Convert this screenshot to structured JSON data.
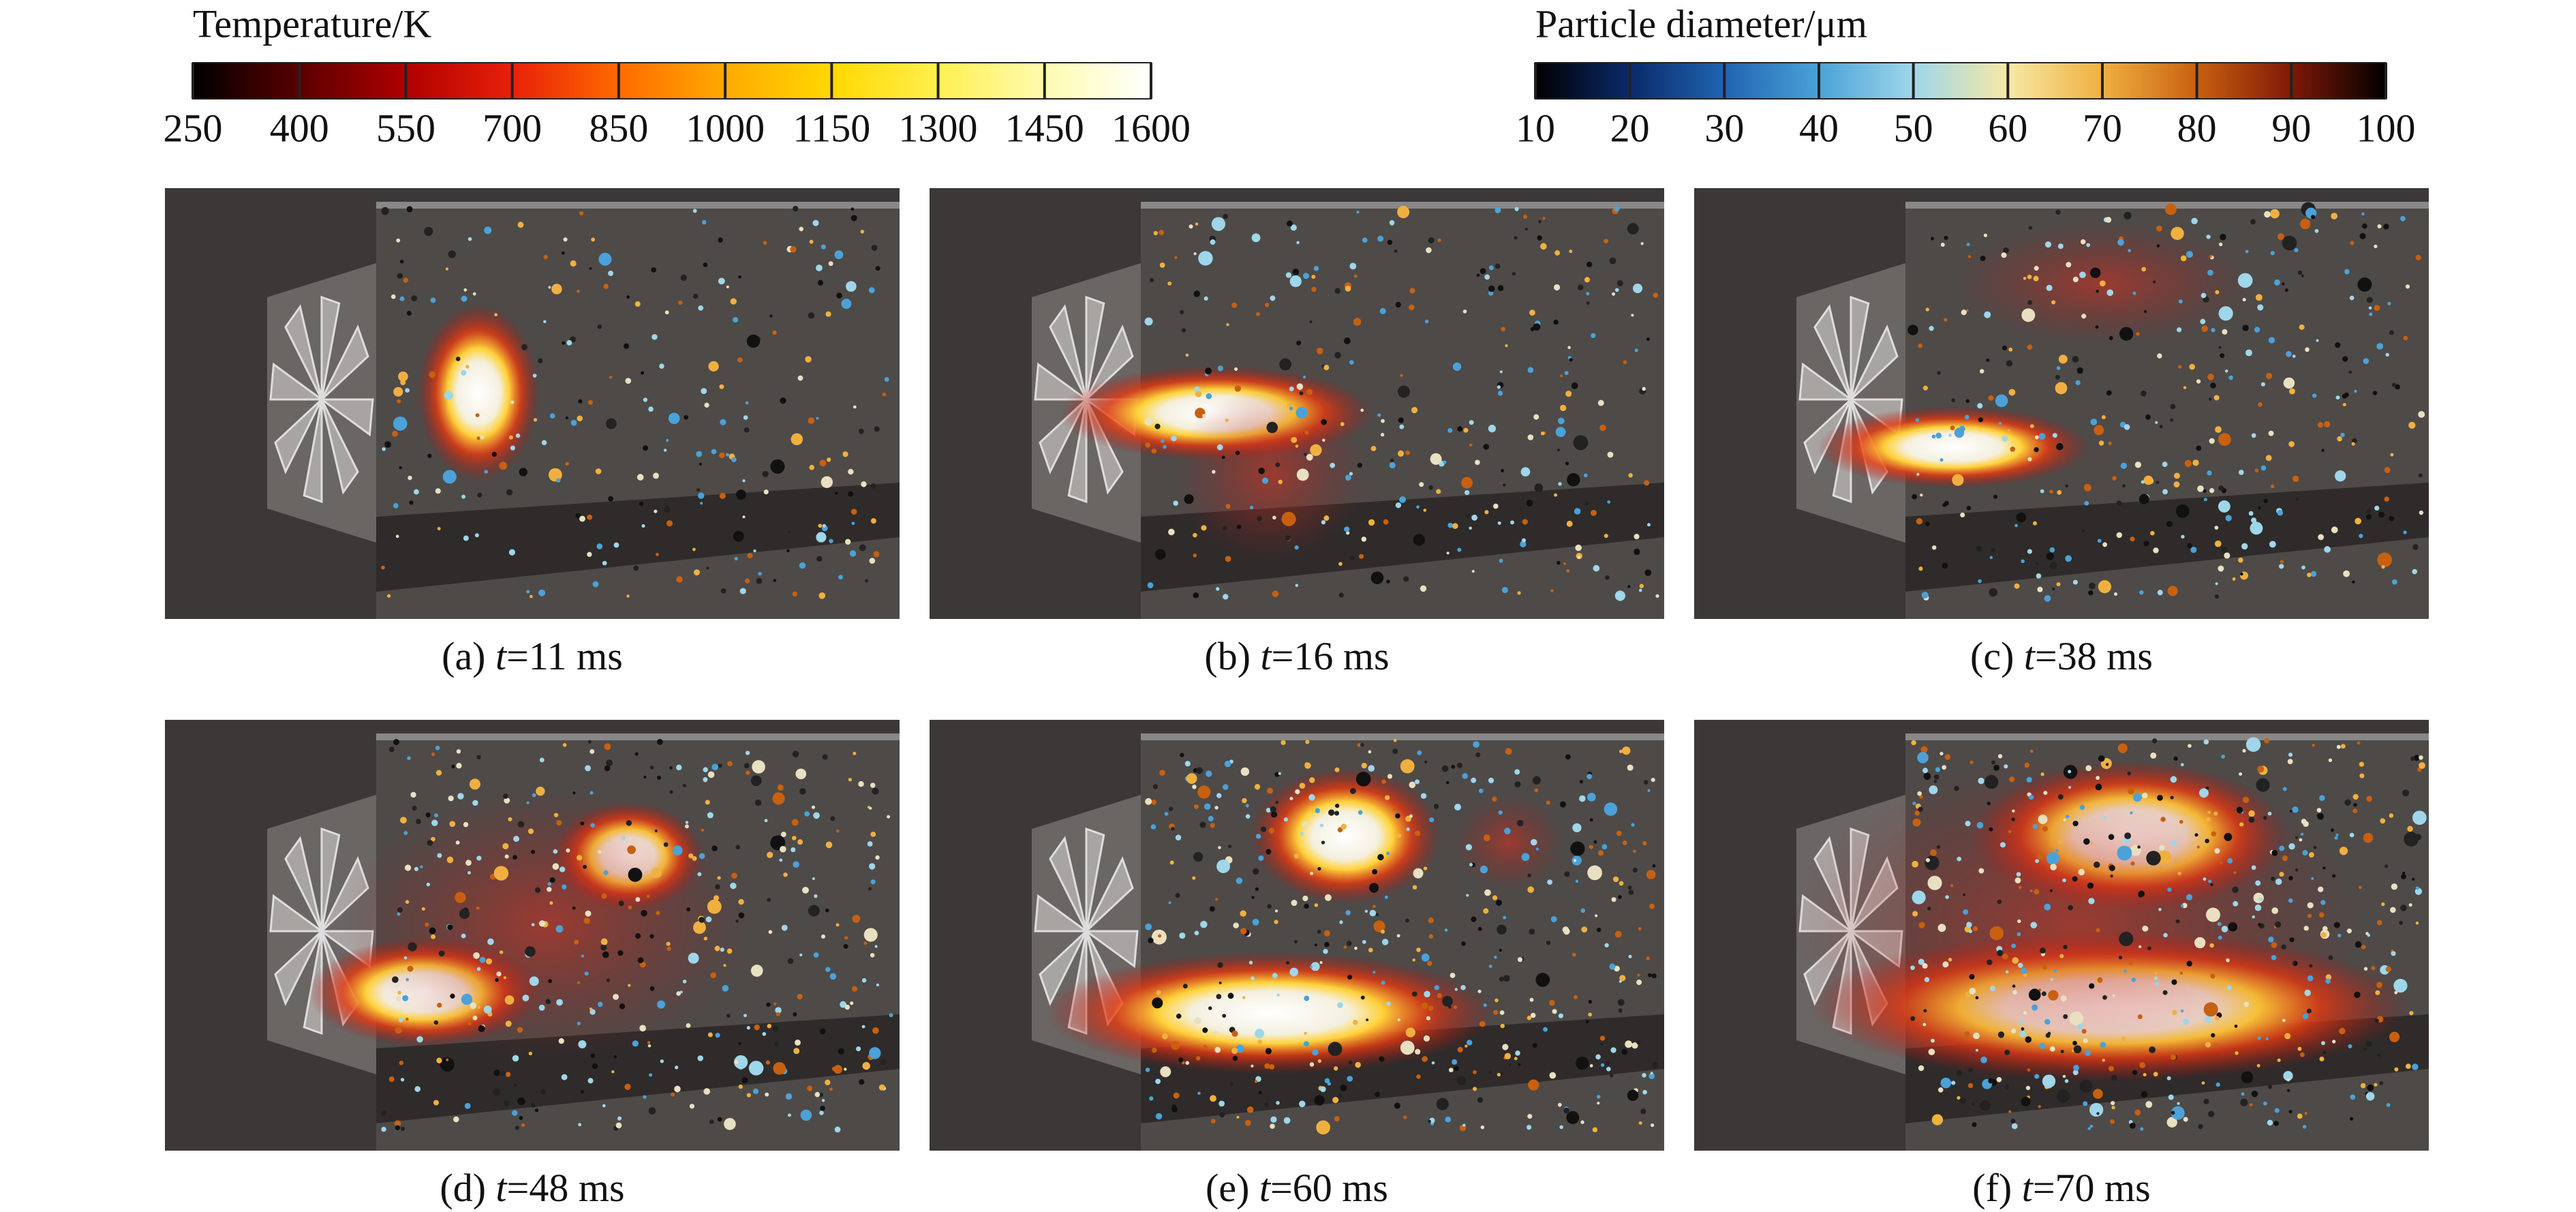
{
  "colorbars": [
    {
      "title": "Temperature/K",
      "ticks": [
        250,
        400,
        550,
        700,
        850,
        1000,
        1150,
        1300,
        1450,
        1600
      ],
      "colors": [
        "#000000",
        "#5a0000",
        "#b00000",
        "#e8200a",
        "#ff6a00",
        "#ffaa00",
        "#ffd800",
        "#fff050",
        "#fffbb0",
        "#ffffff"
      ]
    },
    {
      "title": "Particle diameter/μm",
      "ticks": [
        10,
        20,
        30,
        40,
        50,
        60,
        70,
        80,
        90,
        100
      ],
      "colors": [
        "#000000",
        "#0a2a6a",
        "#1f64b0",
        "#4aa2d8",
        "#9fd6ea",
        "#f6e9a6",
        "#f0b040",
        "#c86010",
        "#801808",
        "#000000"
      ]
    }
  ],
  "panels": [
    {
      "label": "(a) ",
      "var": "t",
      "suffix": "=11 ms"
    },
    {
      "label": "(b) ",
      "var": "t",
      "suffix": "=16 ms"
    },
    {
      "label": "(c) ",
      "var": "t",
      "suffix": "=38 ms"
    },
    {
      "label": "(d) ",
      "var": "t",
      "suffix": "=48 ms"
    },
    {
      "label": "(e) ",
      "var": "t",
      "suffix": "=60 ms"
    },
    {
      "label": "(f) ",
      "var": "t",
      "suffix": "=70 ms"
    }
  ]
}
